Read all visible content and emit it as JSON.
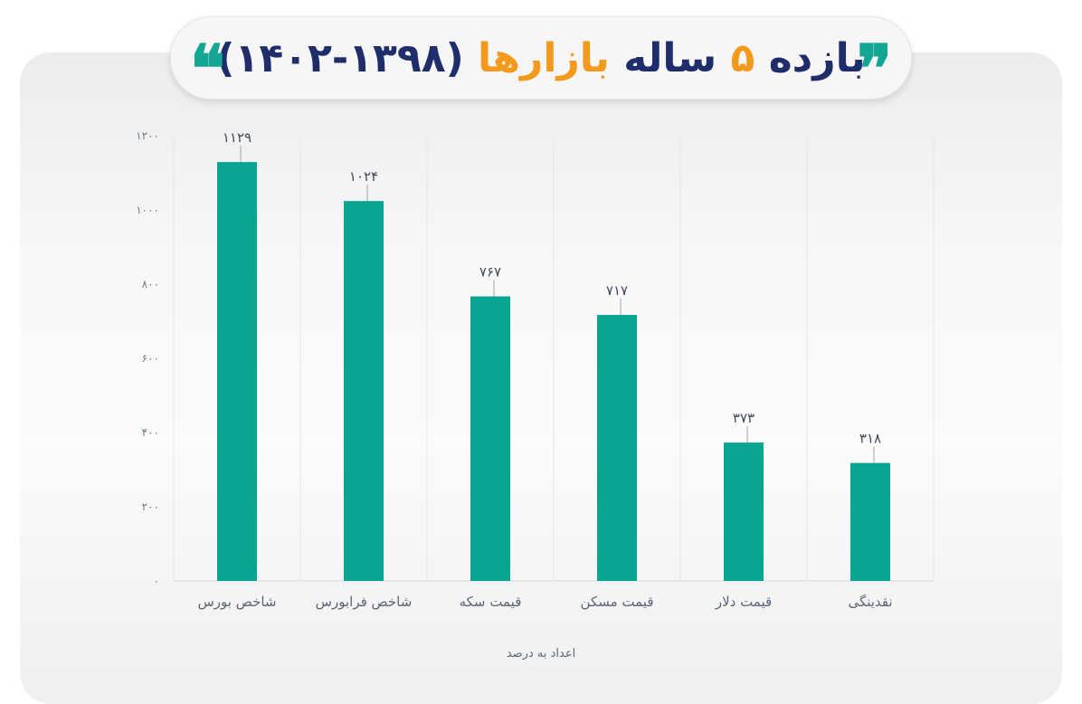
{
  "header": {
    "title_prefix": "بازده",
    "title_number": "۵",
    "title_middle": "ساله",
    "title_markets": "بازارها",
    "title_period": "(۱۳۹۸-۱۴۰۲)",
    "quote_open": "❞",
    "quote_close": "❝"
  },
  "colors": {
    "bar": "#0aa591",
    "title_navy": "#1f2d6b",
    "title_orange": "#f39a1d",
    "quote": "#13a693"
  },
  "chart_data": {
    "type": "bar",
    "categories": [
      "شاخص بورس",
      "شاخص فرابورس",
      "قیمت سکه",
      "قیمت مسکن",
      "قیمت دلار",
      "نقدینگی"
    ],
    "values": [
      1129,
      1024,
      767,
      717,
      373,
      318
    ],
    "value_labels": [
      "۱۱۲۹",
      "۱۰۲۴",
      "۷۶۷",
      "۷۱۷",
      "۳۷۳",
      "۳۱۸"
    ],
    "yticks": [
      0,
      200,
      400,
      600,
      800,
      1000,
      1200
    ],
    "ytick_labels": [
      "۰",
      "۲۰۰",
      "۴۰۰",
      "۶۰۰",
      "۸۰۰",
      "۱۰۰۰",
      "۱۲۰۰"
    ],
    "ylim": [
      0,
      1200
    ],
    "xlabel": "اعداد به درصد",
    "ylabel": "",
    "grid": true,
    "legend": false
  }
}
